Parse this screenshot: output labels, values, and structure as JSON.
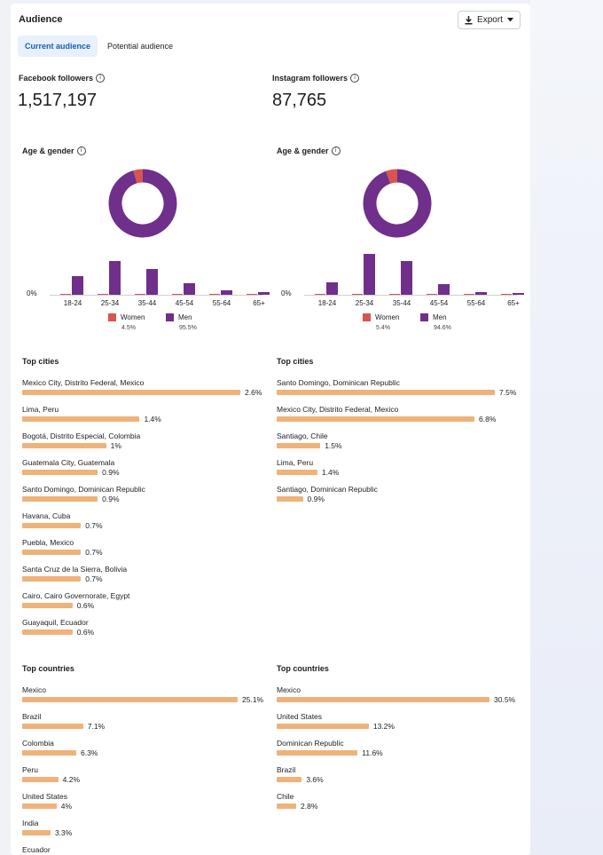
{
  "header": {
    "title": "Audience",
    "export_label": "Export"
  },
  "tabs": [
    {
      "label": "Current audience",
      "active": true
    },
    {
      "label": "Potential audience",
      "active": false
    }
  ],
  "facebook": {
    "followers_label": "Facebook followers",
    "followers_value": "1,517,197",
    "age_gender_label": "Age & gender",
    "zero_label": "0%",
    "age_groups": [
      "18-24",
      "25-34",
      "35-44",
      "45-54",
      "55-64",
      "65+"
    ],
    "women_pct": [
      0.1,
      0.2,
      0.1,
      0.05,
      0.02,
      0.02
    ],
    "men_pct": [
      22,
      40,
      30,
      14,
      5,
      3
    ],
    "legend": {
      "women_label": "Women",
      "women_value": "4.5%",
      "men_label": "Men",
      "men_value": "95.5%"
    },
    "donut": {
      "women": 4.5,
      "men": 95.5
    },
    "top_cities_label": "Top cities",
    "top_cities": [
      {
        "name": "Mexico City, Distrito Federal, Mexico",
        "value": "2.6%",
        "pct": 2.6
      },
      {
        "name": "Lima, Peru",
        "value": "1.4%",
        "pct": 1.4
      },
      {
        "name": "Bogotá, Distrito Especial, Colombia",
        "value": "1%",
        "pct": 1.0
      },
      {
        "name": "Guatemala City, Guatemala",
        "value": "0.9%",
        "pct": 0.9
      },
      {
        "name": "Santo Domingo, Dominican Republic",
        "value": "0.9%",
        "pct": 0.9
      },
      {
        "name": "Havana, Cuba",
        "value": "0.7%",
        "pct": 0.7
      },
      {
        "name": "Puebla, Mexico",
        "value": "0.7%",
        "pct": 0.7
      },
      {
        "name": "Santa Cruz de la Sierra, Bolivia",
        "value": "0.7%",
        "pct": 0.7
      },
      {
        "name": "Cairo, Cairo Governorate, Egypt",
        "value": "0.6%",
        "pct": 0.6
      },
      {
        "name": "Guayaquil, Ecuador",
        "value": "0.6%",
        "pct": 0.6
      }
    ],
    "top_countries_label": "Top countries",
    "top_countries": [
      {
        "name": "Mexico",
        "value": "25.1%",
        "pct": 25.1
      },
      {
        "name": "Brazil",
        "value": "7.1%",
        "pct": 7.1
      },
      {
        "name": "Colombia",
        "value": "6.3%",
        "pct": 6.3
      },
      {
        "name": "Peru",
        "value": "4.2%",
        "pct": 4.2
      },
      {
        "name": "United States",
        "value": "4%",
        "pct": 4.0
      },
      {
        "name": "India",
        "value": "3.3%",
        "pct": 3.3
      },
      {
        "name": "Ecuador",
        "value": "",
        "pct": 0
      }
    ]
  },
  "instagram": {
    "followers_label": "Instagram followers",
    "followers_value": "87,765",
    "age_gender_label": "Age & gender",
    "zero_label": "0%",
    "age_groups": [
      "18-24",
      "25-34",
      "35-44",
      "45-54",
      "55-64",
      "65+"
    ],
    "women_pct": [
      0.2,
      1.0,
      0.5,
      0.1,
      0.03,
      0.03
    ],
    "men_pct": [
      15,
      48,
      40,
      13,
      3,
      2
    ],
    "legend": {
      "women_label": "Women",
      "women_value": "5.4%",
      "men_label": "Men",
      "men_value": "94.6%"
    },
    "donut": {
      "women": 5.4,
      "men": 94.6
    },
    "top_cities_label": "Top cities",
    "top_cities": [
      {
        "name": "Santo Domingo, Dominican Republic",
        "value": "7.5%",
        "pct": 7.5
      },
      {
        "name": "Mexico City, Distrito Federal, Mexico",
        "value": "6.8%",
        "pct": 6.8
      },
      {
        "name": "Santiago, Chile",
        "value": "1.5%",
        "pct": 1.5
      },
      {
        "name": "Lima, Peru",
        "value": "1.4%",
        "pct": 1.4
      },
      {
        "name": "Santiago, Dominican Republic",
        "value": "0.9%",
        "pct": 0.9
      }
    ],
    "top_countries_label": "Top countries",
    "top_countries": [
      {
        "name": "Mexico",
        "value": "30.5%",
        "pct": 30.5
      },
      {
        "name": "United States",
        "value": "13.2%",
        "pct": 13.2
      },
      {
        "name": "Dominican Republic",
        "value": "11.6%",
        "pct": 11.6
      },
      {
        "name": "Brazil",
        "value": "3.6%",
        "pct": 3.6
      },
      {
        "name": "Chile",
        "value": "2.8%",
        "pct": 2.8
      }
    ]
  },
  "colors": {
    "women": "#d9534f",
    "men": "#6f2f8a",
    "bar": "#efb27a",
    "accent": "#1a5fb4"
  }
}
